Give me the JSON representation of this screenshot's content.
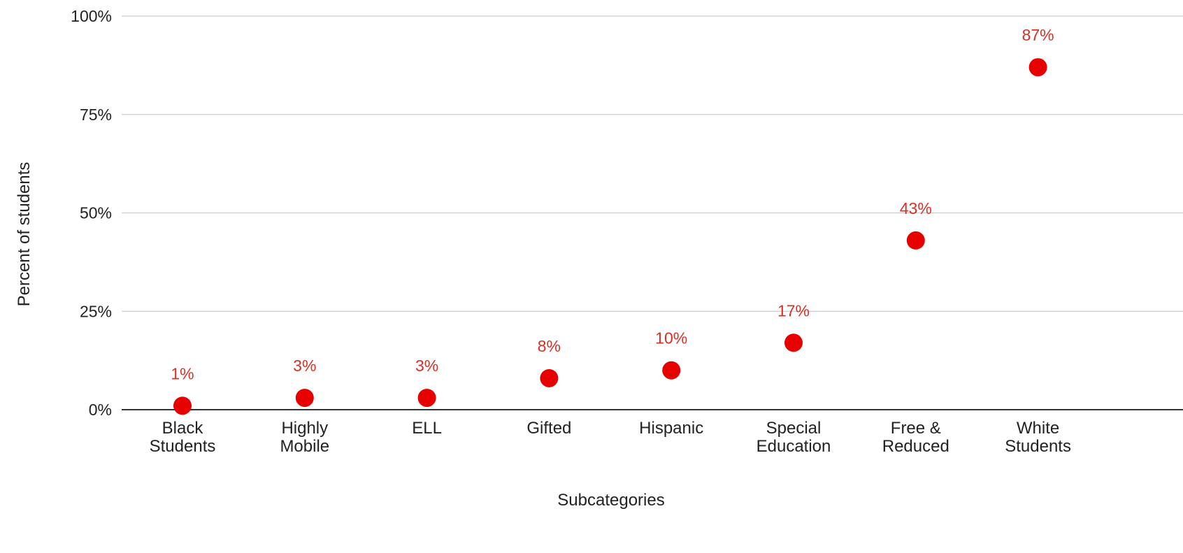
{
  "chart_data": {
    "type": "scatter",
    "title": "",
    "xlabel": "Subcategories",
    "ylabel": "Percent of students",
    "categories": [
      [
        "Black",
        "Students"
      ],
      [
        "Highly",
        "Mobile"
      ],
      [
        "ELL"
      ],
      [
        "Gifted"
      ],
      [
        "Hispanic"
      ],
      [
        "Special",
        "Education"
      ],
      [
        "Free &",
        "Reduced"
      ],
      [
        "White",
        "Students"
      ]
    ],
    "values": [
      1,
      3,
      3,
      8,
      10,
      17,
      43,
      87
    ],
    "data_labels": [
      "1%",
      "3%",
      "3%",
      "8%",
      "10%",
      "17%",
      "43%",
      "87%"
    ],
    "ylim": [
      0,
      100
    ],
    "y_ticks": [
      0,
      25,
      50,
      75,
      100
    ],
    "y_tick_labels": [
      "0%",
      "25%",
      "50%",
      "75%",
      "100%"
    ],
    "grid": true,
    "legend": "none",
    "colors": {
      "marker": "#e60000",
      "data_label": "#d93025",
      "grid": "#cccccc",
      "axis": "#333333",
      "text": "#222222"
    }
  }
}
